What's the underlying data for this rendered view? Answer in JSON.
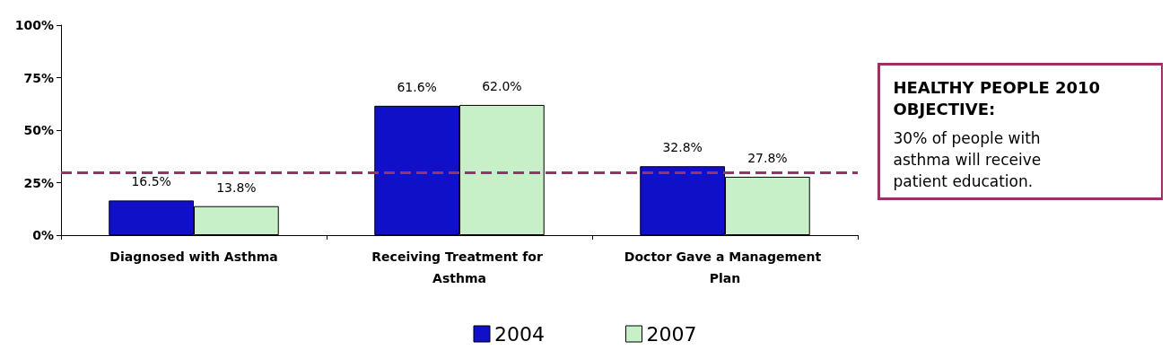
{
  "chart_data": {
    "type": "bar",
    "categories": [
      "Diagnosed with Asthma",
      "Receiving Treatment for Asthma",
      "Doctor Gave a Management Plan"
    ],
    "series": [
      {
        "name": "2004",
        "color": "#1010c8",
        "values": [
          16.5,
          61.6,
          32.8
        ],
        "value_labels": [
          "16.5%",
          "61.6%",
          "32.8%"
        ]
      },
      {
        "name": "2007",
        "color": "#c8f0c8",
        "values": [
          13.8,
          62.0,
          27.8
        ],
        "value_labels": [
          "13.8%",
          "62.0%",
          "27.8%"
        ]
      }
    ],
    "ylim": [
      0,
      100
    ],
    "yticks": [
      {
        "value": 0,
        "label": "0%"
      },
      {
        "value": 25,
        "label": "25%"
      },
      {
        "value": 50,
        "label": "50%"
      },
      {
        "value": 75,
        "label": "75%"
      },
      {
        "value": 100,
        "label": "100%"
      }
    ],
    "grid": false,
    "legend": "bottom",
    "ref_lines": [
      {
        "axis": "y",
        "value": 30,
        "label": null,
        "color": "#993366",
        "line_style": "dashed"
      }
    ],
    "annotations": [
      "HEALTHY PEOPLE 2010 OBJECTIVE:",
      "30% of people with asthma will receive patient education."
    ]
  }
}
